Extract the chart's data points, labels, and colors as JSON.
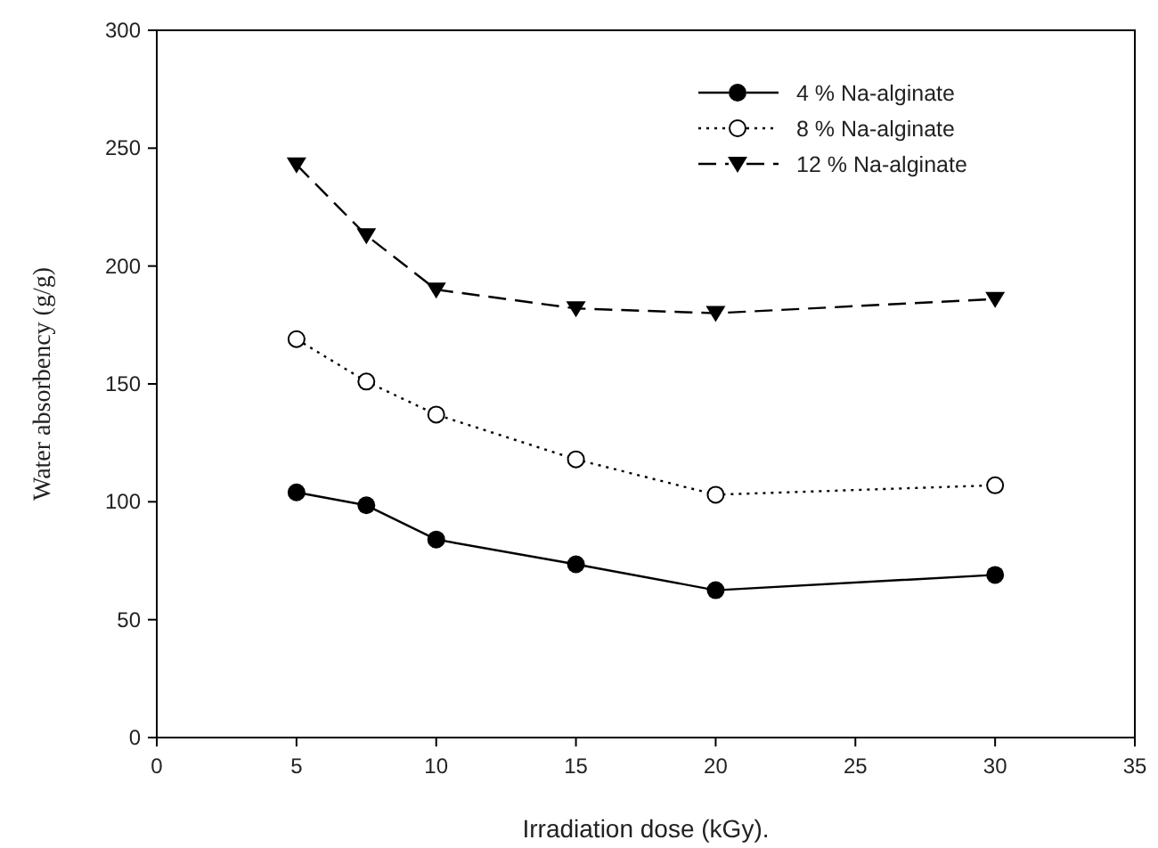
{
  "chart_data": {
    "type": "line",
    "xlabel": "Irradiation dose (kGy).",
    "ylabel": "Water absorbency (g/g)",
    "x": [
      5,
      7.5,
      10,
      15,
      20,
      30
    ],
    "series": [
      {
        "name": "4 % Na-alginate",
        "color": "#000000",
        "values": [
          104,
          98.5,
          84,
          73.5,
          62.5,
          69
        ],
        "marker": "circle",
        "line_style": "solid"
      },
      {
        "name": "8 % Na-alginate",
        "color": "#000000",
        "values": [
          169,
          151,
          137,
          118,
          103,
          107
        ],
        "marker": "open-circle",
        "line_style": "dotted"
      },
      {
        "name": "12 % Na-alginate",
        "color": "#000000",
        "values": [
          243,
          213,
          190,
          182,
          180,
          186
        ],
        "marker": "triangle",
        "line_style": "dashed"
      }
    ],
    "xlim": [
      0,
      35
    ],
    "xticks": [
      0,
      5,
      10,
      15,
      20,
      25,
      30,
      35
    ],
    "ylim": [
      0,
      300
    ],
    "yticks": [
      0,
      50,
      100,
      150,
      200,
      250,
      300
    ],
    "grid": false,
    "legend": "top right"
  }
}
